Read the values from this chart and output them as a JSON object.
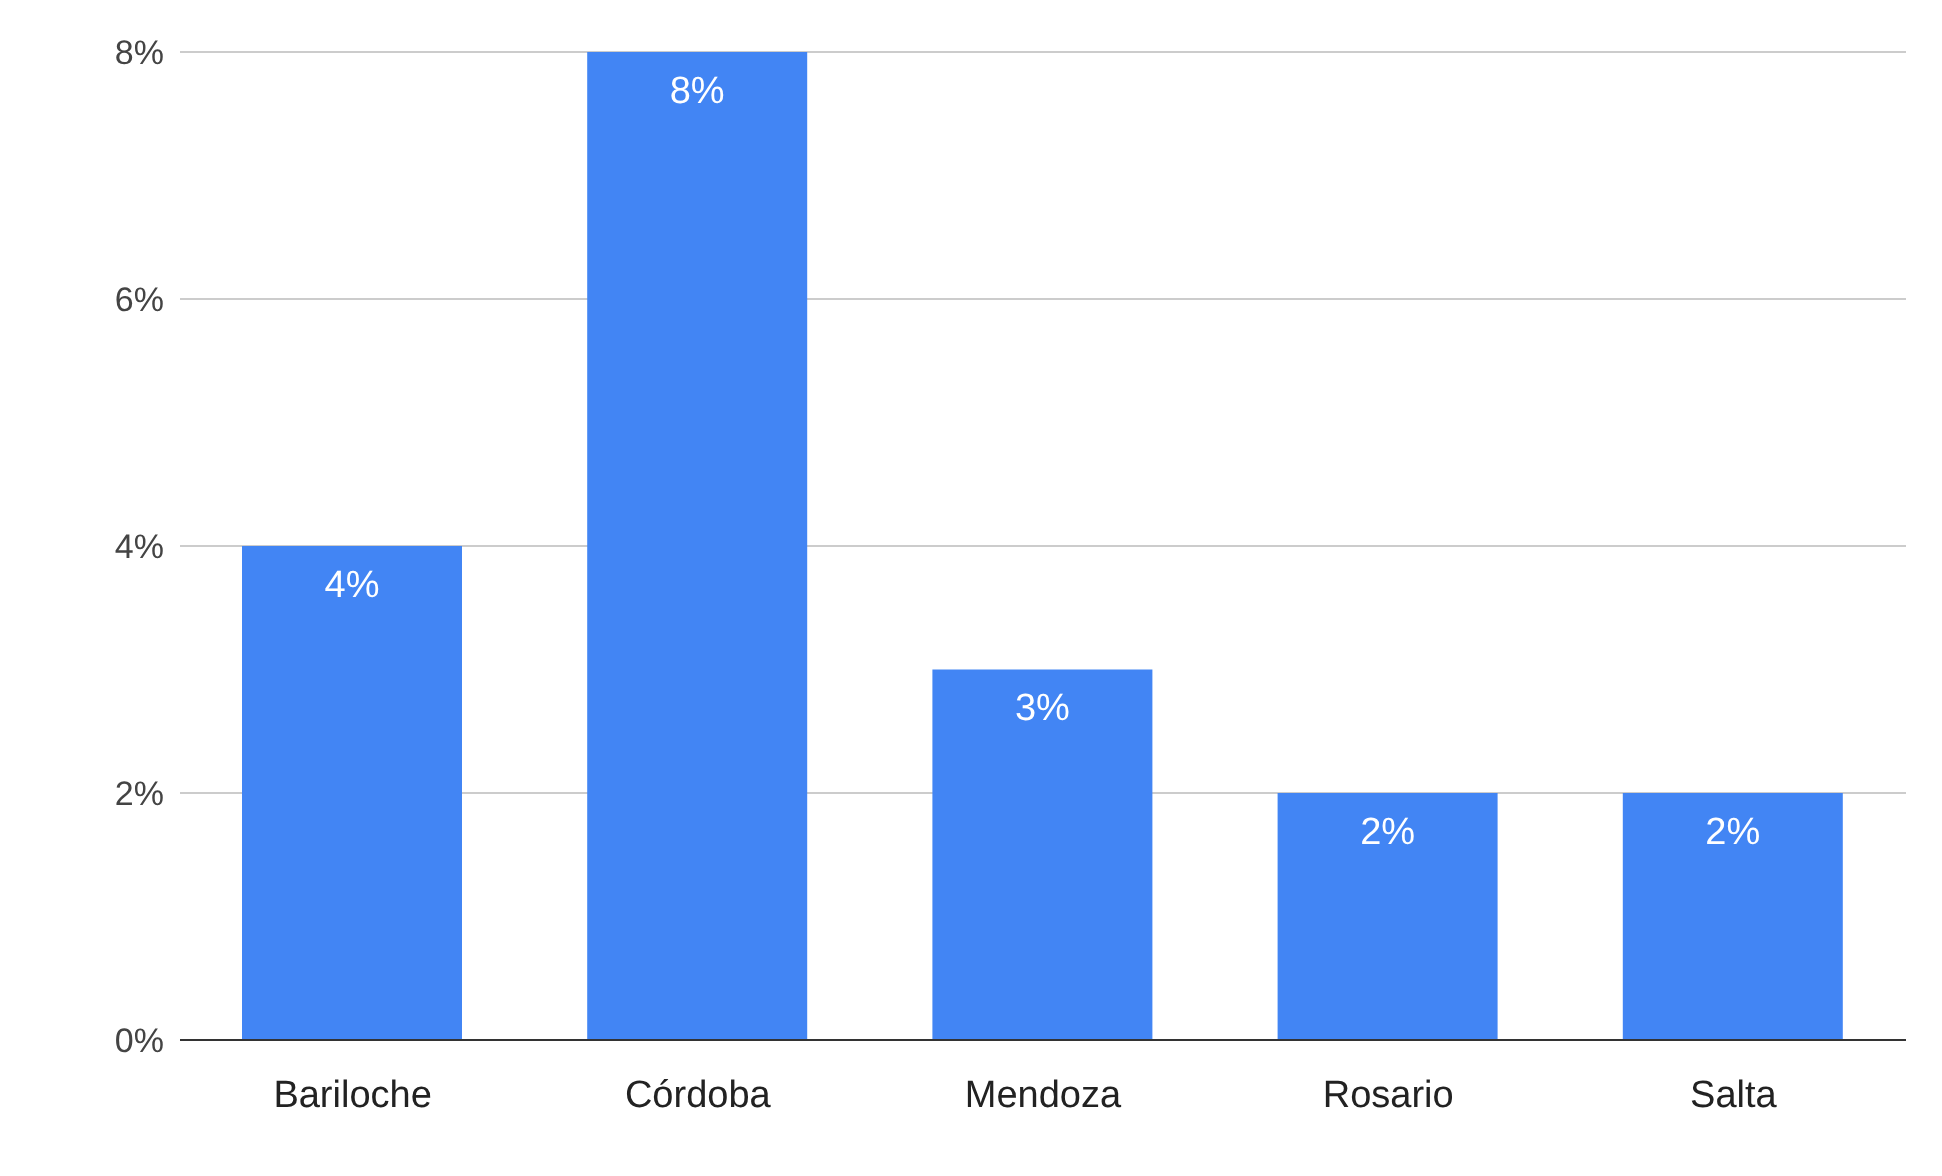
{
  "chart_data": {
    "type": "bar",
    "categories": [
      "Bariloche",
      "Córdoba",
      "Mendoza",
      "Rosario",
      "Salta"
    ],
    "values": [
      4,
      8,
      3,
      2,
      2
    ],
    "value_labels": [
      "4%",
      "8%",
      "3%",
      "2%",
      "2%"
    ],
    "color": "#4285f4",
    "ylim": [
      0,
      8
    ],
    "yticks": [
      {
        "value": 0,
        "label": "0%"
      },
      {
        "value": 2,
        "label": "2%"
      },
      {
        "value": 4,
        "label": "4%"
      },
      {
        "value": 6,
        "label": "6%"
      },
      {
        "value": 8,
        "label": "8%"
      }
    ],
    "grid": "y",
    "legend": false
  }
}
